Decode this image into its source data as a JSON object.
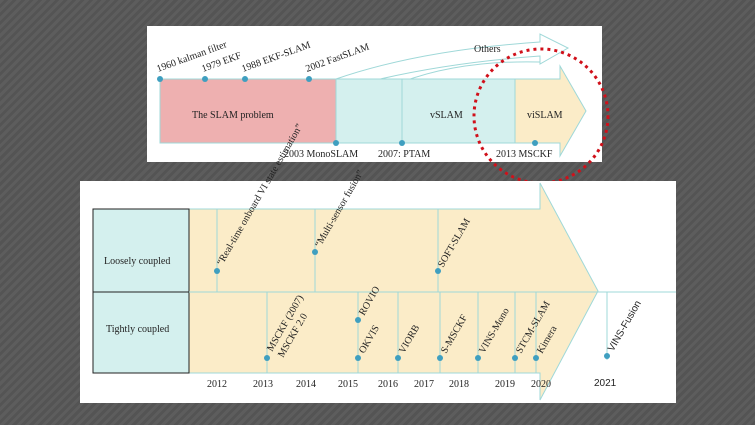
{
  "top": {
    "above": [
      "1960 kalman filter",
      "1979 EKF",
      "1988 EKF-SLAM",
      "2002 FastSLAM"
    ],
    "segments": [
      "The SLAM problem",
      "vSLAM",
      "viSLAM"
    ],
    "others": "Others",
    "below": [
      "2003 MonoSLAM",
      "2007: PTAM",
      "2013 MSCKF"
    ]
  },
  "bottom": {
    "rows": [
      "Loosely coupled",
      "Tightly coupled"
    ],
    "years": [
      "2012",
      "2013",
      "2014",
      "2015",
      "2016",
      "2017",
      "2018",
      "2019",
      "2020",
      "2021"
    ],
    "loosely": [
      "“Real-time onboard VI state estimation”",
      "“Multi-sensor fusion”",
      "SOFT-SLAM"
    ],
    "tightly": [
      "MSCKF (2007)",
      "MSCKF 2.0",
      "ROVIO",
      "OKVIS",
      "VIORB",
      "S-MSCKF",
      "VINS-Mono",
      "STCM-SLAM",
      "Kimera",
      "VINS-Fusion"
    ]
  }
}
